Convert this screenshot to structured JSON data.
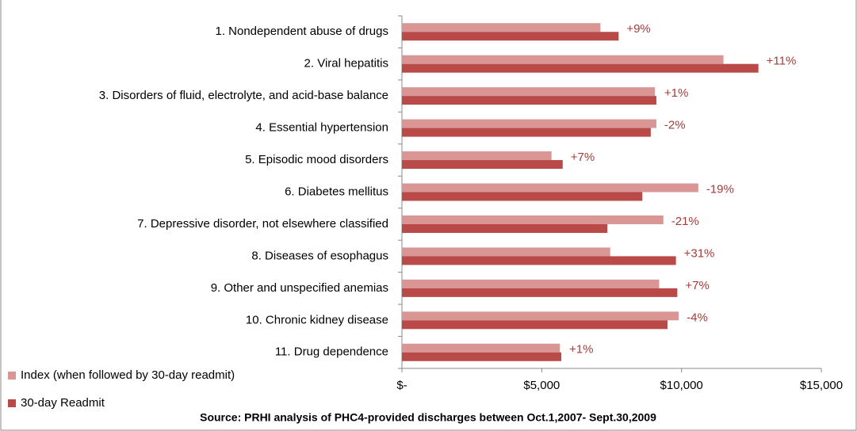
{
  "chart_data": {
    "type": "barh",
    "categories": [
      "1. Nondependent abuse of drugs",
      "2. Viral hepatitis",
      "3. Disorders of fluid, electrolyte, and acid-base balance",
      "4. Essential hypertension",
      "5. Episodic mood disorders",
      "6. Diabetes mellitus",
      "7. Depressive disorder, not elsewhere classified",
      "8. Diseases of esophagus",
      "9. Other and unspecified anemias",
      "10. Chronic kidney disease",
      "11. Drug dependence"
    ],
    "series": [
      {
        "name": "Index (when followed by 30-day readmit)",
        "color": "#d99694",
        "values": [
          7100,
          11500,
          9050,
          9100,
          5350,
          10600,
          9350,
          7450,
          9200,
          9900,
          5650
        ]
      },
      {
        "name": "30-day Readmit",
        "color": "#b94a48",
        "values": [
          7750,
          12750,
          9100,
          8900,
          5750,
          8600,
          7350,
          9800,
          9850,
          9500,
          5700
        ]
      }
    ],
    "change_labels": [
      "+9%",
      "+11%",
      "+1%",
      "-2%",
      "+7%",
      "-19%",
      "-21%",
      "+31%",
      "+7%",
      "-4%",
      "+1%"
    ],
    "xlim": [
      0,
      15000
    ],
    "xticks": [
      {
        "value": 0,
        "label": "$-"
      },
      {
        "value": 5000,
        "label": "$5,000"
      },
      {
        "value": 10000,
        "label": "$10,000"
      },
      {
        "value": 15000,
        "label": "$15,000"
      }
    ],
    "source": "Source: PRHI analysis of PHC4-provided discharges between Oct.1,2007- Sept.30,2009"
  }
}
